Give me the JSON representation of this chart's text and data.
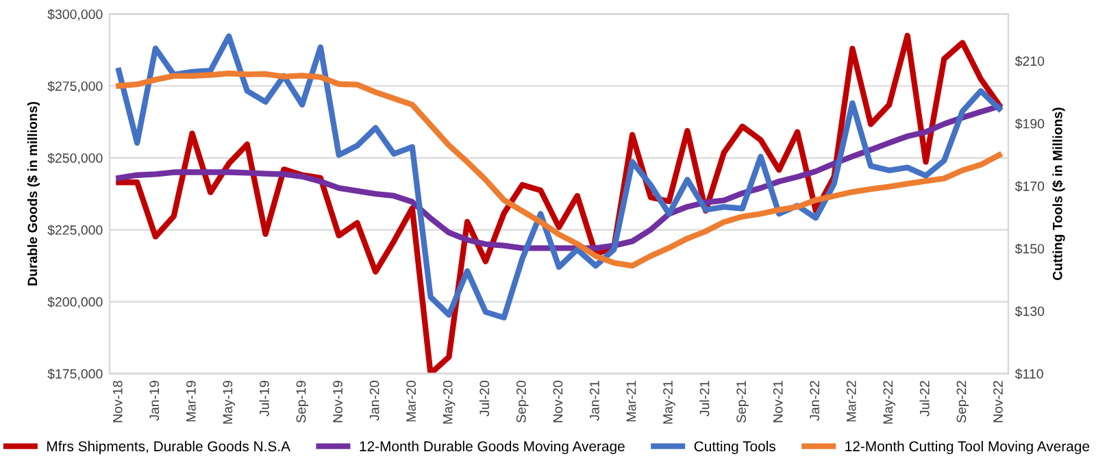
{
  "chart_data": {
    "type": "line",
    "xlabel": null,
    "ylabel": "Durable Goods ($ in millions)",
    "y2label": "Cutting Tools ($ in Millions)",
    "categories": [
      "Nov-18",
      null,
      "Jan-19",
      null,
      "Mar-19",
      null,
      "May-19",
      null,
      "Jul-19",
      null,
      "Sep-19",
      null,
      "Nov-19",
      null,
      "Jan-20",
      null,
      "Mar-20",
      null,
      "May-20",
      null,
      "Jul-20",
      null,
      "Sep-20",
      null,
      "Nov-20",
      null,
      "Jan-21",
      null,
      "Mar-21",
      null,
      "May-21",
      null,
      "Jul-21",
      null,
      "Sep-21",
      null,
      "Nov-21",
      null,
      "Jan-22",
      null,
      "Mar-22",
      null,
      "May-22",
      null,
      "Jul-22",
      null,
      "Sep-22",
      null,
      "Nov-22"
    ],
    "series": [
      {
        "name": "Mfrs Shipments, Durable Goods N.S.A",
        "color": "#c00000",
        "values": [
          241500,
          241500,
          222600,
          229700,
          258500,
          238000,
          248000,
          254700,
          223500,
          246000,
          244000,
          243000,
          223000,
          227400,
          210400,
          221000,
          232500,
          175000,
          180800,
          227800,
          214000,
          230700,
          240600,
          238700,
          225900,
          236800,
          216500,
          219000,
          258000,
          236300,
          234900,
          259400,
          231600,
          251900,
          260900,
          256200,
          245800,
          259000,
          231600,
          243400,
          288000,
          261700,
          268400,
          292500,
          248600,
          284400,
          290000,
          277400,
          268400
        ]
      },
      {
        "name": "12-Month Durable Goods Moving Average",
        "color": "#7030a0",
        "values": [
          243000,
          244000,
          244300,
          245000,
          245000,
          245000,
          245000,
          244800,
          244500,
          244300,
          243500,
          241800,
          239500,
          238500,
          237500,
          236800,
          234700,
          229000,
          224000,
          221500,
          220000,
          219500,
          218600,
          218600,
          218600,
          218600,
          218600,
          219500,
          221000,
          225000,
          230500,
          233000,
          234500,
          235200,
          237700,
          239500,
          241800,
          243400,
          245300,
          248000,
          250500,
          252800,
          255200,
          257500,
          259000,
          261800,
          264000,
          266000,
          267900
        ]
      },
      {
        "name": "Cutting Tools",
        "color": "#4472c4",
        "axis": "y2",
        "values": [
          206.9,
          183.8,
          214.0,
          205.6,
          206.5,
          206.9,
          217.9,
          200.4,
          196.9,
          205.2,
          196.0,
          214.4,
          179.9,
          182.9,
          188.6,
          180.3,
          182.5,
          134.5,
          128.8,
          142.8,
          129.7,
          127.9,
          146.7,
          161.1,
          144.1,
          149.7,
          144.5,
          149.7,
          177.7,
          170.3,
          161.1,
          172.0,
          162.4,
          163.3,
          162.8,
          179.4,
          161.1,
          163.7,
          159.8,
          170.7,
          196.5,
          176.4,
          175.0,
          175.9,
          173.3,
          178.1,
          193.9,
          200.4,
          194.7
        ]
      },
      {
        "name": "12-Month Cutting Tool Moving Average",
        "color": "#ed7d31",
        "axis": "y2",
        "values": [
          202.0,
          202.5,
          204.0,
          205.2,
          205.2,
          205.5,
          206.0,
          205.7,
          205.8,
          205.0,
          205.3,
          204.8,
          202.6,
          202.4,
          200.0,
          198.0,
          196.0,
          189.5,
          183.0,
          177.7,
          172.0,
          165.5,
          162.0,
          158.5,
          154.5,
          151.5,
          147.6,
          145.4,
          144.5,
          147.6,
          150.2,
          153.2,
          155.5,
          158.5,
          160.2,
          161.1,
          162.4,
          163.3,
          165.5,
          166.8,
          168.1,
          169.0,
          169.8,
          170.7,
          171.6,
          172.4,
          175.0,
          176.8,
          179.9
        ]
      }
    ],
    "ylim": [
      175000,
      300000
    ],
    "yticks": [
      {
        "value": 175000,
        "label": "$175,000"
      },
      {
        "value": 200000,
        "label": "$200,000"
      },
      {
        "value": 225000,
        "label": "$225,000"
      },
      {
        "value": 250000,
        "label": "$250,000"
      },
      {
        "value": 275000,
        "label": "$275,000"
      },
      {
        "value": 300000,
        "label": "$300,000"
      }
    ],
    "y2lim": [
      110,
      225
    ],
    "y2ticks": [
      {
        "value": 110,
        "label": "$110"
      },
      {
        "value": 130,
        "label": "$130"
      },
      {
        "value": 150,
        "label": "$150"
      },
      {
        "value": 170,
        "label": "$170"
      },
      {
        "value": 190,
        "label": "$190"
      },
      {
        "value": 210,
        "label": "$210"
      }
    ],
    "grid": "y",
    "legend": "bottom",
    "marker": "none",
    "line_style": "solid"
  }
}
